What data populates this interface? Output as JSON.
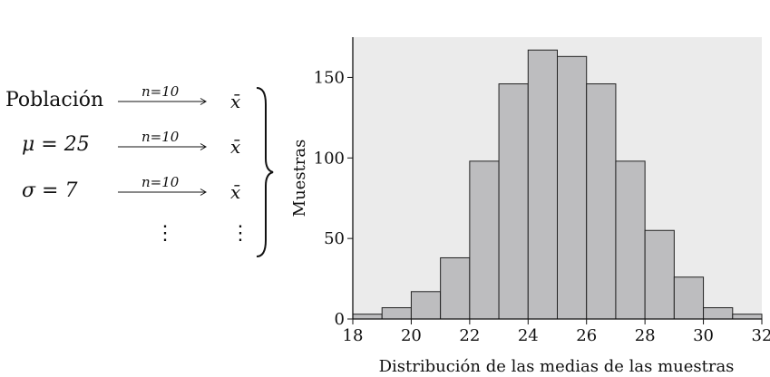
{
  "diagram": {
    "population_label": "Población",
    "mu_label": "μ = 25",
    "sigma_label": "σ = 7",
    "arrow_label": "n=10",
    "sample_mean_symbol": "x̄",
    "continuation": "⋮"
  },
  "chart_data": {
    "type": "bar",
    "title": "",
    "xlabel": "Distribución de las medias de las muestras",
    "ylabel": "Muestras",
    "x_ticks": [
      18,
      20,
      22,
      24,
      26,
      28,
      30,
      32
    ],
    "y_ticks": [
      0,
      50,
      100,
      150
    ],
    "xlim": [
      18,
      32
    ],
    "ylim": [
      0,
      175
    ],
    "bin_edges": [
      18,
      19,
      20,
      21,
      22,
      23,
      24,
      25,
      26,
      27,
      28,
      29,
      30,
      31,
      32
    ],
    "values": [
      3,
      7,
      17,
      38,
      98,
      146,
      167,
      163,
      146,
      98,
      55,
      26,
      7,
      3
    ],
    "grid": false,
    "background": "#ebebeb",
    "bar_color": "#bdbdbf"
  }
}
